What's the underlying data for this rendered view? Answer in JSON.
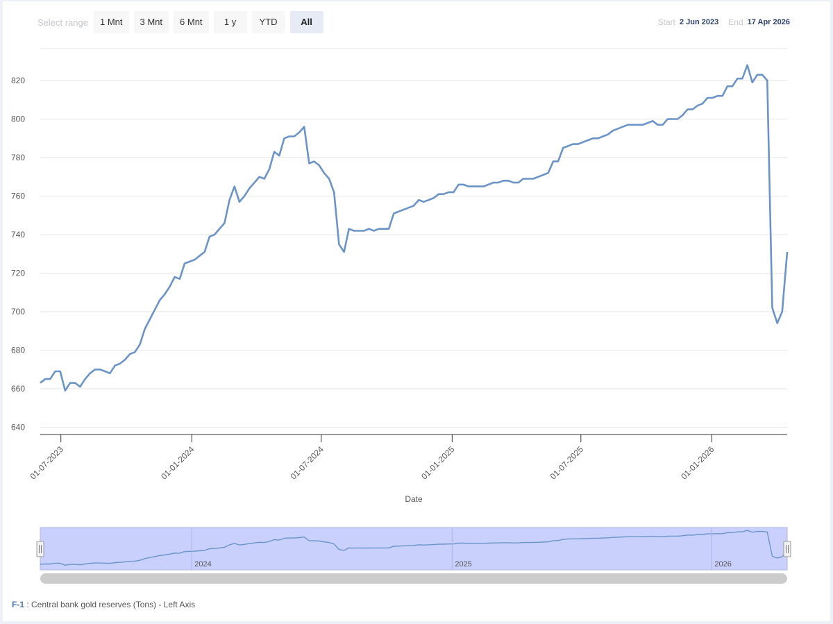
{
  "range_selector": {
    "label": "Select range",
    "buttons": [
      "1 Mnt",
      "3 Mnt",
      "6 Mnt",
      "1 y",
      "YTD",
      "All"
    ],
    "active": "All"
  },
  "date_range": {
    "start_label": "Start",
    "start_value": "2 Jun 2023",
    "end_label": "End",
    "end_value": "17 Apr 2026"
  },
  "colors": {
    "line": "#6a93c9",
    "navigator_fill": "#c9d0fb",
    "navigator_line": "#6a93c9",
    "scrollbar": "#cccccc",
    "grid": "#e6e6e6"
  },
  "chart_data": {
    "type": "line",
    "xlabel": "Date",
    "ylabel": "",
    "ylim": [
      640,
      830
    ],
    "yticks": [
      640,
      660,
      680,
      700,
      720,
      740,
      760,
      780,
      800,
      820
    ],
    "xticks": [
      "01-07-2023",
      "01-01-2024",
      "01-07-2024",
      "01-01-2025",
      "01-07-2025",
      "01-01-2026"
    ],
    "grid": true,
    "navigator_labels": [
      "2024",
      "2025",
      "2026"
    ],
    "series": [
      {
        "name": "Central bank gold reserves (Tons)",
        "points": [
          [
            "2023-06-02",
            663
          ],
          [
            "2023-06-09",
            665
          ],
          [
            "2023-06-16",
            665
          ],
          [
            "2023-06-23",
            669
          ],
          [
            "2023-06-30",
            669
          ],
          [
            "2023-07-07",
            659
          ],
          [
            "2023-07-14",
            663
          ],
          [
            "2023-07-21",
            663
          ],
          [
            "2023-07-28",
            661
          ],
          [
            "2023-08-04",
            665
          ],
          [
            "2023-08-11",
            668
          ],
          [
            "2023-08-18",
            670
          ],
          [
            "2023-08-25",
            670
          ],
          [
            "2023-09-01",
            669
          ],
          [
            "2023-09-08",
            668
          ],
          [
            "2023-09-15",
            672
          ],
          [
            "2023-09-22",
            673
          ],
          [
            "2023-09-29",
            675
          ],
          [
            "2023-10-06",
            678
          ],
          [
            "2023-10-13",
            679
          ],
          [
            "2023-10-20",
            683
          ],
          [
            "2023-10-27",
            691
          ],
          [
            "2023-11-03",
            696
          ],
          [
            "2023-11-10",
            701
          ],
          [
            "2023-11-17",
            706
          ],
          [
            "2023-11-24",
            709
          ],
          [
            "2023-12-01",
            713
          ],
          [
            "2023-12-08",
            718
          ],
          [
            "2023-12-15",
            717
          ],
          [
            "2023-12-22",
            725
          ],
          [
            "2023-12-29",
            726
          ],
          [
            "2024-01-05",
            727
          ],
          [
            "2024-01-12",
            729
          ],
          [
            "2024-01-19",
            731
          ],
          [
            "2024-01-26",
            739
          ],
          [
            "2024-02-02",
            740
          ],
          [
            "2024-02-09",
            743
          ],
          [
            "2024-02-16",
            746
          ],
          [
            "2024-02-23",
            758
          ],
          [
            "2024-03-01",
            765
          ],
          [
            "2024-03-08",
            757
          ],
          [
            "2024-03-15",
            760
          ],
          [
            "2024-03-22",
            764
          ],
          [
            "2024-03-29",
            767
          ],
          [
            "2024-04-05",
            770
          ],
          [
            "2024-04-12",
            769
          ],
          [
            "2024-04-19",
            774
          ],
          [
            "2024-04-26",
            783
          ],
          [
            "2024-05-03",
            781
          ],
          [
            "2024-05-10",
            790
          ],
          [
            "2024-05-17",
            791
          ],
          [
            "2024-05-24",
            791
          ],
          [
            "2024-05-31",
            793
          ],
          [
            "2024-06-07",
            796
          ],
          [
            "2024-06-14",
            777
          ],
          [
            "2024-06-21",
            778
          ],
          [
            "2024-06-28",
            776
          ],
          [
            "2024-07-05",
            772
          ],
          [
            "2024-07-12",
            769
          ],
          [
            "2024-07-19",
            762
          ],
          [
            "2024-07-26",
            735
          ],
          [
            "2024-08-02",
            731
          ],
          [
            "2024-08-09",
            743
          ],
          [
            "2024-08-16",
            742
          ],
          [
            "2024-08-23",
            742
          ],
          [
            "2024-08-30",
            742
          ],
          [
            "2024-09-06",
            743
          ],
          [
            "2024-09-13",
            742
          ],
          [
            "2024-09-20",
            743
          ],
          [
            "2024-09-27",
            743
          ],
          [
            "2024-10-04",
            743
          ],
          [
            "2024-10-11",
            751
          ],
          [
            "2024-10-18",
            752
          ],
          [
            "2024-10-25",
            753
          ],
          [
            "2024-11-01",
            754
          ],
          [
            "2024-11-08",
            755
          ],
          [
            "2024-11-15",
            758
          ],
          [
            "2024-11-22",
            757
          ],
          [
            "2024-11-29",
            758
          ],
          [
            "2024-12-06",
            759
          ],
          [
            "2024-12-13",
            761
          ],
          [
            "2024-12-20",
            761
          ],
          [
            "2024-12-27",
            762
          ],
          [
            "2025-01-03",
            762
          ],
          [
            "2025-01-10",
            766
          ],
          [
            "2025-01-17",
            766
          ],
          [
            "2025-01-24",
            765
          ],
          [
            "2025-01-31",
            765
          ],
          [
            "2025-02-07",
            765
          ],
          [
            "2025-02-14",
            765
          ],
          [
            "2025-02-21",
            766
          ],
          [
            "2025-02-28",
            767
          ],
          [
            "2025-03-07",
            767
          ],
          [
            "2025-03-14",
            768
          ],
          [
            "2025-03-21",
            768
          ],
          [
            "2025-03-28",
            767
          ],
          [
            "2025-04-04",
            767
          ],
          [
            "2025-04-11",
            769
          ],
          [
            "2025-04-18",
            769
          ],
          [
            "2025-04-25",
            769
          ],
          [
            "2025-05-02",
            770
          ],
          [
            "2025-05-09",
            771
          ],
          [
            "2025-05-16",
            772
          ],
          [
            "2025-05-23",
            778
          ],
          [
            "2025-05-30",
            778
          ],
          [
            "2025-06-06",
            785
          ],
          [
            "2025-06-13",
            786
          ],
          [
            "2025-06-20",
            787
          ],
          [
            "2025-06-27",
            787
          ],
          [
            "2025-07-04",
            788
          ],
          [
            "2025-07-11",
            789
          ],
          [
            "2025-07-18",
            790
          ],
          [
            "2025-07-25",
            790
          ],
          [
            "2025-08-01",
            791
          ],
          [
            "2025-08-08",
            792
          ],
          [
            "2025-08-15",
            794
          ],
          [
            "2025-08-22",
            795
          ],
          [
            "2025-08-29",
            796
          ],
          [
            "2025-09-05",
            797
          ],
          [
            "2025-09-12",
            797
          ],
          [
            "2025-09-19",
            797
          ],
          [
            "2025-09-26",
            797
          ],
          [
            "2025-10-03",
            798
          ],
          [
            "2025-10-10",
            799
          ],
          [
            "2025-10-17",
            797
          ],
          [
            "2025-10-24",
            797
          ],
          [
            "2025-10-31",
            800
          ],
          [
            "2025-11-07",
            800
          ],
          [
            "2025-11-14",
            800
          ],
          [
            "2025-11-21",
            802
          ],
          [
            "2025-11-28",
            805
          ],
          [
            "2025-12-05",
            805
          ],
          [
            "2025-12-12",
            807
          ],
          [
            "2025-12-19",
            808
          ],
          [
            "2025-12-26",
            811
          ],
          [
            "2026-01-02",
            811
          ],
          [
            "2026-01-09",
            812
          ],
          [
            "2026-01-16",
            812
          ],
          [
            "2026-01-23",
            817
          ],
          [
            "2026-01-30",
            817
          ],
          [
            "2026-02-06",
            821
          ],
          [
            "2026-02-13",
            821
          ],
          [
            "2026-02-20",
            828
          ],
          [
            "2026-02-27",
            819
          ],
          [
            "2026-03-06",
            823
          ],
          [
            "2026-03-13",
            823
          ],
          [
            "2026-03-20",
            820
          ],
          [
            "2026-03-27",
            702
          ],
          [
            "2026-04-03",
            694
          ],
          [
            "2026-04-10",
            700
          ],
          [
            "2026-04-17",
            731
          ]
        ]
      }
    ]
  },
  "footnote": {
    "id": "F-1",
    "text": " : Central bank gold reserves (Tons) - Left Axis"
  }
}
